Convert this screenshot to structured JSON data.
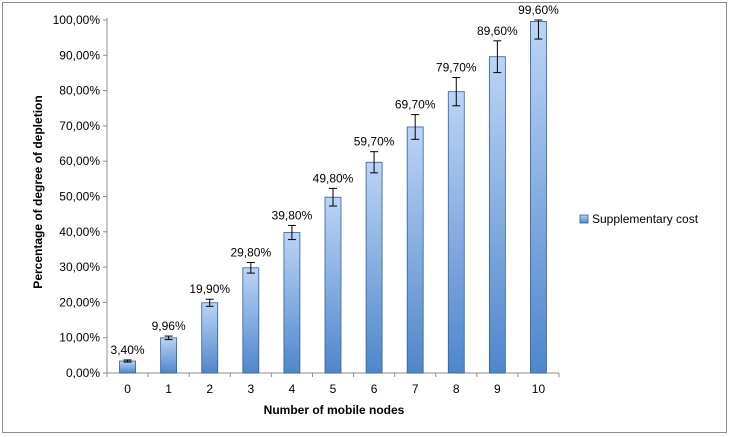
{
  "chart_data": {
    "type": "bar",
    "title": "",
    "xlabel": "Number of mobile nodes",
    "ylabel": "Percentage of degree of depletion",
    "categories": [
      "0",
      "1",
      "2",
      "3",
      "4",
      "5",
      "6",
      "7",
      "8",
      "9",
      "10"
    ],
    "series": [
      {
        "name": "Supplementary cost",
        "values": [
          3.4,
          9.96,
          19.9,
          29.8,
          39.8,
          49.8,
          59.7,
          69.7,
          79.7,
          89.6,
          99.6
        ],
        "labels": [
          "3,40%",
          "9,96%",
          "19,90%",
          "29,80%",
          "39,80%",
          "49,80%",
          "59,70%",
          "69,70%",
          "79,70%",
          "89,60%",
          "99,60%"
        ],
        "error": [
          0.3,
          0.5,
          1.0,
          1.5,
          2.0,
          2.5,
          3.0,
          3.5,
          4.0,
          4.5,
          5.0
        ]
      }
    ],
    "ylim": [
      0,
      100
    ],
    "yticks": [
      "0,00%",
      "10,00%",
      "20,00%",
      "30,00%",
      "40,00%",
      "50,00%",
      "60,00%",
      "70,00%",
      "80,00%",
      "90,00%",
      "100,00%"
    ],
    "grid": false,
    "legend": "right",
    "colors": {
      "bar_top": "#bcd4f5",
      "bar_bottom": "#4f86cc",
      "bar_edge": "#2f5f99"
    }
  }
}
